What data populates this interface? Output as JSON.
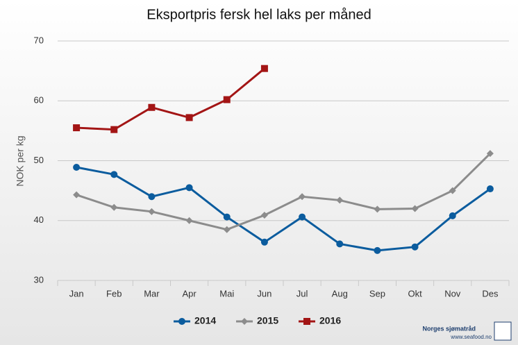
{
  "chart_data": {
    "type": "line",
    "title": "Eksportpris fersk hel laks per måned",
    "y_axis_label": "NOK per kg",
    "categories": [
      "Jan",
      "Feb",
      "Mar",
      "Apr",
      "Mai",
      "Jun",
      "Jul",
      "Aug",
      "Sep",
      "Okt",
      "Nov",
      "Des"
    ],
    "series": [
      {
        "name": "2014",
        "color": "#0b5c9e",
        "marker": "circle",
        "values": [
          48.9,
          47.7,
          44.0,
          45.5,
          40.6,
          36.4,
          40.6,
          36.1,
          35.0,
          35.6,
          40.8,
          45.3
        ]
      },
      {
        "name": "2015",
        "color": "#8c8c8c",
        "marker": "diamond",
        "values": [
          44.3,
          42.2,
          41.5,
          40.0,
          38.5,
          40.9,
          44.0,
          43.4,
          41.9,
          42.0,
          45.0,
          51.2
        ]
      },
      {
        "name": "2016",
        "color": "#a31515",
        "marker": "square",
        "values": [
          55.5,
          55.2,
          58.9,
          57.2,
          60.2,
          65.4,
          null,
          null,
          null,
          null,
          null,
          null
        ]
      }
    ],
    "ylim": [
      30,
      70
    ],
    "yticks": [
      30,
      40,
      50,
      60,
      70
    ],
    "grid": true,
    "legend": "bottom"
  },
  "logo": {
    "name": "Norges sjømatråd",
    "url": "www.seafood.no"
  }
}
